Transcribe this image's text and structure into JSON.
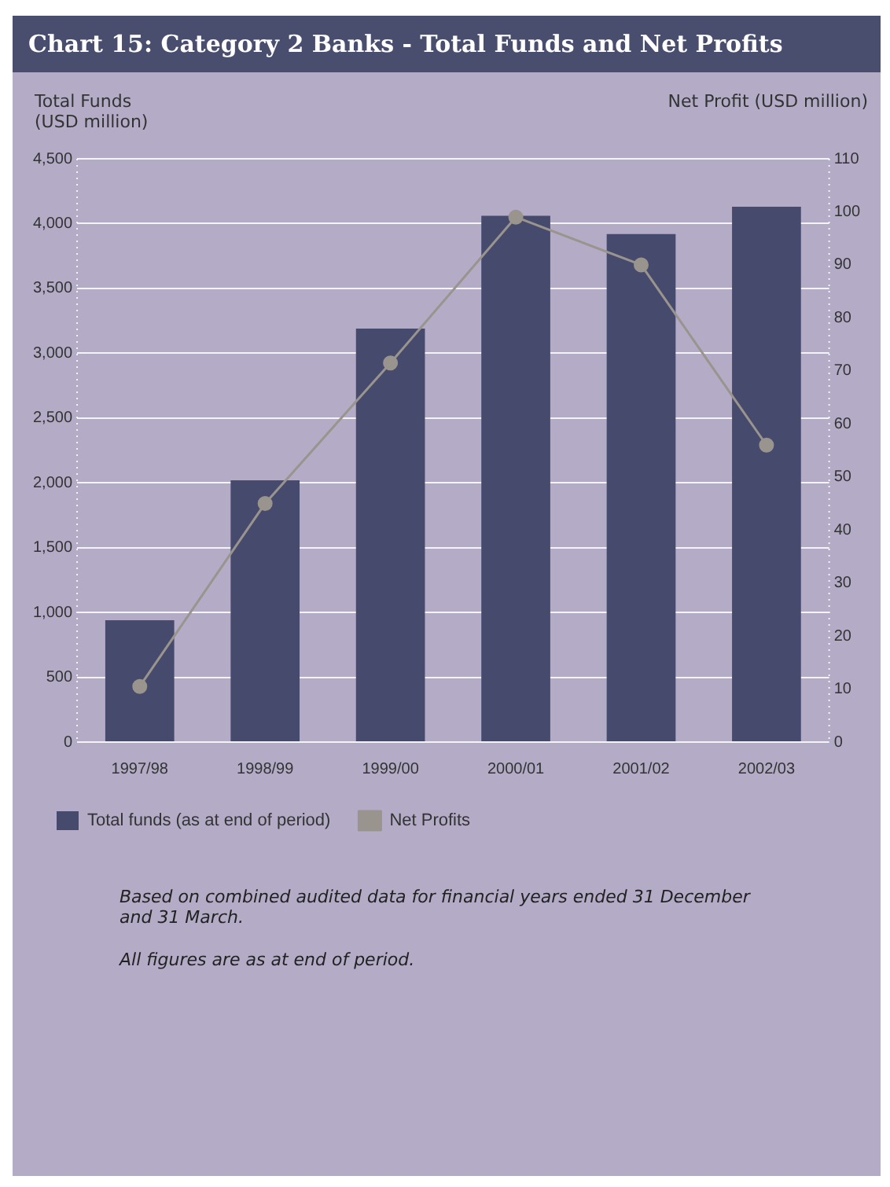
{
  "chart_data": {
    "type": "bar",
    "title": "Chart 15: Category 2 Banks - Total Funds and Net Profits",
    "ylabel": "Total Funds (USD million)",
    "y2label": "Net Profit (USD million)",
    "categories": [
      "1997/98",
      "1998/99",
      "1999/00",
      "2000/01",
      "2001/02",
      "2002/03"
    ],
    "series": [
      {
        "name": "Total funds (as at end of period)",
        "color": "#464b6e",
        "values": [
          940,
          2020,
          3190,
          4060,
          3920,
          4130
        ]
      },
      {
        "name": "Net Profits",
        "type": "line",
        "axis": "y2",
        "color": "#9a948e",
        "marker": "circle",
        "values": [
          10.5,
          45,
          71.5,
          99,
          90,
          56
        ]
      }
    ],
    "ylim": [
      0,
      4500
    ],
    "yticks": [
      {
        "value": 0,
        "label": "0"
      },
      {
        "value": 500,
        "label": "500"
      },
      {
        "value": 1000,
        "label": "1,000"
      },
      {
        "value": 1500,
        "label": "1,500"
      },
      {
        "value": 2000,
        "label": "2,000"
      },
      {
        "value": 2500,
        "label": "2,500"
      },
      {
        "value": 3000,
        "label": "3,000"
      },
      {
        "value": 3500,
        "label": "3,500"
      },
      {
        "value": 4000,
        "label": "4,000"
      },
      {
        "value": 4500,
        "label": "4,500"
      }
    ],
    "y2lim": [
      0,
      110
    ],
    "y2ticks": [
      0,
      10,
      20,
      30,
      40,
      50,
      60,
      70,
      80,
      90,
      100,
      110
    ],
    "grid": "y",
    "legend": "bottom",
    "annotations": [
      "Based on combined audited data for financial years ended 31 December and 31 March.",
      "All figures are as at end of period."
    ]
  }
}
